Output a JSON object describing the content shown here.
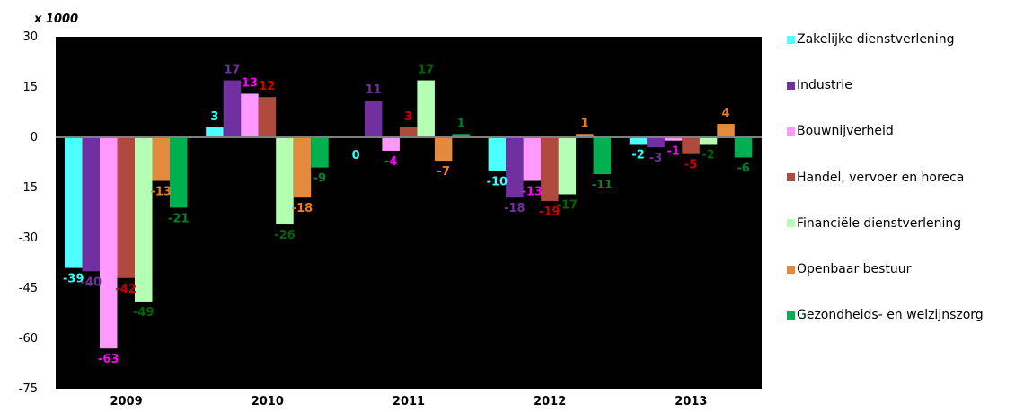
{
  "chart_data": {
    "type": "bar",
    "unit_label": "x 1000",
    "categories": [
      "2009",
      "2010",
      "2011",
      "2012",
      "2013"
    ],
    "ylim": [
      -75,
      30
    ],
    "yticks": [
      30,
      15,
      0,
      -15,
      -30,
      -45,
      -60,
      -75
    ],
    "grid": false,
    "legend_position": "right",
    "series": [
      {
        "name": "Zakelijke dienstverlening",
        "color": "#4dffff",
        "label_color": "#33ffff",
        "values": [
          -39,
          3,
          0,
          -10,
          -2
        ]
      },
      {
        "name": "Industrie",
        "color": "#7030a0",
        "label_color": "#7030a0",
        "values": [
          -40,
          17,
          11,
          -18,
          -3
        ]
      },
      {
        "name": "Bouwnijverheid",
        "color": "#ff99ff",
        "label_color": "#ff00ff",
        "values": [
          -63,
          13,
          -4,
          -13,
          -1
        ]
      },
      {
        "name": "Handel, vervoer en horeca",
        "color": "#b04a3e",
        "label_color": "#cc0000",
        "values": [
          -42,
          12,
          3,
          -19,
          -5
        ]
      },
      {
        "name": "Financiële dienstverlening",
        "color": "#b3ffb3",
        "label_color": "#006400",
        "values": [
          -49,
          -26,
          17,
          -17,
          -2
        ]
      },
      {
        "name": "Openbaar bestuur",
        "color": "#e38a3e",
        "label_color": "#e87c28",
        "values": [
          -13,
          -18,
          -7,
          1,
          4
        ]
      },
      {
        "name": "Gezondheids- en welzijnszorg",
        "color": "#00b050",
        "label_color": "#00802f",
        "values": [
          -21,
          -9,
          1,
          -11,
          -6
        ]
      }
    ]
  }
}
